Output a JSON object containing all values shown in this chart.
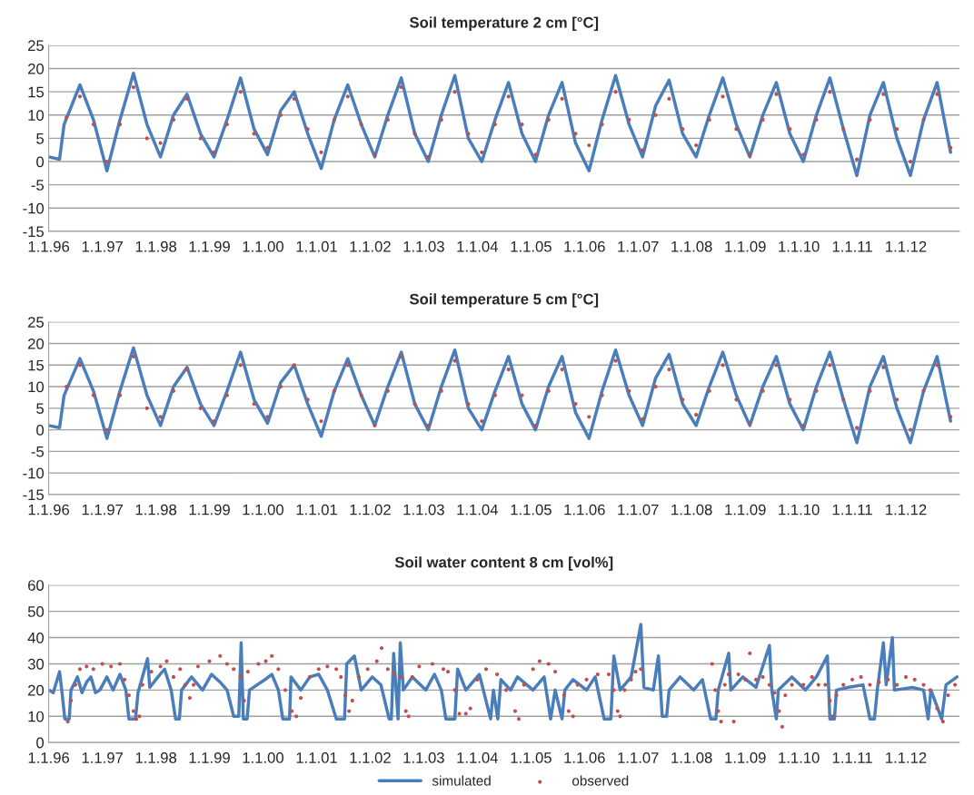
{
  "chart_data": [
    {
      "type": "line",
      "title": "Soil temperature 2 cm [°C]",
      "ylim": [
        -15,
        25
      ],
      "yticks": [
        -15,
        -10,
        -5,
        0,
        5,
        10,
        15,
        20,
        25
      ],
      "xlim": [
        "1996-01-01",
        "2012-12-31"
      ],
      "xticks": [
        {
          "value": "1996-01-01",
          "label": "1.1.96"
        },
        {
          "value": "1997-01-01",
          "label": "1.1.97"
        },
        {
          "value": "1998-01-01",
          "label": "1.1.98"
        },
        {
          "value": "1999-01-01",
          "label": "1.1.99"
        },
        {
          "value": "2000-01-01",
          "label": "1.1.00"
        },
        {
          "value": "2001-01-01",
          "label": "1.1.01"
        },
        {
          "value": "2002-01-01",
          "label": "1.1.02"
        },
        {
          "value": "2003-01-01",
          "label": "1.1.03"
        },
        {
          "value": "2004-01-01",
          "label": "1.1.04"
        },
        {
          "value": "2005-01-01",
          "label": "1.1.05"
        },
        {
          "value": "2006-01-01",
          "label": "1.1.06"
        },
        {
          "value": "2007-01-01",
          "label": "1.1.07"
        },
        {
          "value": "2008-01-01",
          "label": "1.1.08"
        },
        {
          "value": "2009-01-01",
          "label": "1.1.09"
        },
        {
          "value": "2010-01-01",
          "label": "1.1.10"
        },
        {
          "value": "2011-01-01",
          "label": "1.1.11"
        },
        {
          "value": "2012-01-01",
          "label": "1.1.12"
        }
      ],
      "grid": "y",
      "series": [
        {
          "type": "line",
          "color": "#4a7ebb",
          "x": [
            "1996-01",
            "1996-03-15",
            "1996-04-15",
            "1996-08",
            "1996-11",
            "1997-02",
            "1997-05",
            "1997-08",
            "1997-11",
            "1998-02",
            "1998-05",
            "1998-08",
            "1998-11",
            "1999-02",
            "1999-05",
            "1999-08",
            "1999-11",
            "2000-02",
            "2000-05",
            "2000-08",
            "2000-11",
            "2001-02",
            "2001-05",
            "2001-08",
            "2001-11",
            "2002-02",
            "2002-05",
            "2002-08",
            "2002-11",
            "2003-02",
            "2003-05",
            "2003-08",
            "2003-11",
            "2004-02",
            "2004-05",
            "2004-08",
            "2004-11",
            "2005-02",
            "2005-05",
            "2005-08",
            "2005-11",
            "2006-02",
            "2006-05",
            "2006-08",
            "2006-11",
            "2007-02",
            "2007-05",
            "2007-08",
            "2007-11",
            "2008-02",
            "2008-05",
            "2008-08",
            "2008-11",
            "2009-02",
            "2009-05",
            "2009-08",
            "2009-11",
            "2010-02",
            "2010-05",
            "2010-08",
            "2010-11",
            "2011-02",
            "2011-05",
            "2011-08",
            "2011-11",
            "2012-02",
            "2012-05",
            "2012-08",
            "2012-11"
          ],
          "values": [
            1,
            0.5,
            8,
            16.5,
            9,
            -2,
            9,
            19,
            8,
            1,
            10,
            14.5,
            6,
            1,
            9,
            18,
            7,
            1.5,
            11,
            15,
            6,
            -1.5,
            9,
            16.5,
            8,
            1,
            10,
            18,
            6,
            0,
            10,
            18.5,
            5,
            0,
            9,
            17,
            6,
            0,
            10,
            17,
            4,
            -2,
            9,
            18.5,
            8,
            1,
            12,
            17.5,
            6,
            1,
            10,
            18,
            8,
            1,
            10,
            17,
            6,
            0,
            10,
            18,
            7,
            -3,
            10,
            17,
            5,
            -3,
            9,
            17,
            2
          ]
        },
        {
          "type": "scatter",
          "color": "#c0504d",
          "x": [
            "1996-05",
            "1996-08",
            "1996-11",
            "1997-02",
            "1997-05",
            "1997-08",
            "1997-11",
            "1998-02",
            "1998-05",
            "1998-08",
            "1998-11",
            "1999-02",
            "1999-05",
            "1999-08",
            "1999-11",
            "2000-02",
            "2000-05",
            "2000-08",
            "2000-11",
            "2001-02",
            "2001-05",
            "2001-08",
            "2001-11",
            "2002-02",
            "2002-05",
            "2002-08",
            "2002-11",
            "2003-02",
            "2003-05",
            "2003-08",
            "2003-11",
            "2004-02",
            "2004-05",
            "2004-08",
            "2004-11",
            "2005-02",
            "2005-05",
            "2005-08",
            "2005-11",
            "2006-02",
            "2006-05",
            "2006-08",
            "2006-11",
            "2007-02",
            "2007-05",
            "2007-08",
            "2007-11",
            "2008-02",
            "2008-05",
            "2008-08",
            "2008-11",
            "2009-02",
            "2009-05",
            "2009-08",
            "2009-11",
            "2010-02",
            "2010-05",
            "2010-08",
            "2010-11",
            "2011-02",
            "2011-05",
            "2011-08",
            "2011-11",
            "2012-02",
            "2012-05",
            "2012-08",
            "2012-11"
          ],
          "values": [
            9.5,
            14,
            8,
            0,
            8,
            16,
            5,
            4,
            9,
            13.5,
            5,
            2,
            8,
            15,
            6,
            3,
            10,
            13.5,
            7,
            2,
            9,
            14,
            8,
            1.5,
            9,
            16,
            6,
            1,
            9,
            15,
            6,
            2,
            8,
            14,
            8,
            1.5,
            9,
            13.5,
            6,
            3.5,
            8,
            15,
            9,
            2.5,
            10,
            13.5,
            7,
            3.5,
            9,
            14,
            7,
            1.5,
            9,
            14.5,
            7,
            1.5,
            9,
            15,
            7,
            0.5,
            9,
            14.5,
            7,
            0,
            9,
            14.5,
            3
          ]
        }
      ]
    },
    {
      "type": "line",
      "title": "Soil temperature 5 cm [°C]",
      "ylim": [
        -15,
        25
      ],
      "yticks": [
        -15,
        -10,
        -5,
        0,
        5,
        10,
        15,
        20,
        25
      ],
      "xlim": [
        "1996-01-01",
        "2012-12-31"
      ],
      "xticks": [
        {
          "value": "1996-01-01",
          "label": "1.1.96"
        },
        {
          "value": "1997-01-01",
          "label": "1.1.97"
        },
        {
          "value": "1998-01-01",
          "label": "1.1.98"
        },
        {
          "value": "1999-01-01",
          "label": "1.1.99"
        },
        {
          "value": "2000-01-01",
          "label": "1.1.00"
        },
        {
          "value": "2001-01-01",
          "label": "1.1.01"
        },
        {
          "value": "2002-01-01",
          "label": "1.1.02"
        },
        {
          "value": "2003-01-01",
          "label": "1.1.03"
        },
        {
          "value": "2004-01-01",
          "label": "1.1.04"
        },
        {
          "value": "2005-01-01",
          "label": "1.1.05"
        },
        {
          "value": "2006-01-01",
          "label": "1.1.06"
        },
        {
          "value": "2007-01-01",
          "label": "1.1.07"
        },
        {
          "value": "2008-01-01",
          "label": "1.1.08"
        },
        {
          "value": "2009-01-01",
          "label": "1.1.09"
        },
        {
          "value": "2010-01-01",
          "label": "1.1.10"
        },
        {
          "value": "2011-01-01",
          "label": "1.1.11"
        },
        {
          "value": "2012-01-01",
          "label": "1.1.12"
        }
      ],
      "grid": "y",
      "series": [
        {
          "type": "line",
          "color": "#4a7ebb",
          "x": [
            "1996-01",
            "1996-03-15",
            "1996-04-15",
            "1996-08",
            "1996-11",
            "1997-02",
            "1997-05",
            "1997-08",
            "1997-11",
            "1998-02",
            "1998-05",
            "1998-08",
            "1998-11",
            "1999-02",
            "1999-05",
            "1999-08",
            "1999-11",
            "2000-02",
            "2000-05",
            "2000-08",
            "2000-11",
            "2001-02",
            "2001-05",
            "2001-08",
            "2001-11",
            "2002-02",
            "2002-05",
            "2002-08",
            "2002-11",
            "2003-02",
            "2003-05",
            "2003-08",
            "2003-11",
            "2004-02",
            "2004-05",
            "2004-08",
            "2004-11",
            "2005-02",
            "2005-05",
            "2005-08",
            "2005-11",
            "2006-02",
            "2006-05",
            "2006-08",
            "2006-11",
            "2007-02",
            "2007-05",
            "2007-08",
            "2007-11",
            "2008-02",
            "2008-05",
            "2008-08",
            "2008-11",
            "2009-02",
            "2009-05",
            "2009-08",
            "2009-11",
            "2010-02",
            "2010-05",
            "2010-08",
            "2010-11",
            "2011-02",
            "2011-05",
            "2011-08",
            "2011-11",
            "2012-02",
            "2012-05",
            "2012-08",
            "2012-11"
          ],
          "values": [
            1,
            0.5,
            8,
            16.5,
            9,
            -2,
            9,
            19,
            8,
            1,
            10,
            14.5,
            6,
            1,
            9,
            18,
            7,
            1.5,
            11,
            15,
            6,
            -1.5,
            9,
            16.5,
            8,
            1,
            10,
            18,
            6,
            0,
            10,
            18.5,
            5,
            0,
            9,
            17,
            6,
            0,
            10,
            17,
            4,
            -2,
            9,
            18.5,
            8,
            1,
            12,
            17.5,
            6,
            1,
            10,
            18,
            8,
            1,
            10,
            17,
            6,
            0,
            10,
            18,
            7,
            -3,
            10,
            17,
            5,
            -3,
            9,
            17,
            2
          ]
        },
        {
          "type": "scatter",
          "color": "#c0504d",
          "x": [
            "1996-05",
            "1996-08",
            "1996-11",
            "1997-02",
            "1997-05",
            "1997-08",
            "1997-11",
            "1998-02",
            "1998-05",
            "1998-08",
            "1998-11",
            "1999-02",
            "1999-05",
            "1999-08",
            "1999-11",
            "2000-02",
            "2000-05",
            "2000-08",
            "2000-11",
            "2001-02",
            "2001-05",
            "2001-08",
            "2001-11",
            "2002-02",
            "2002-05",
            "2002-08",
            "2002-11",
            "2003-02",
            "2003-05",
            "2003-08",
            "2003-11",
            "2004-02",
            "2004-05",
            "2004-08",
            "2004-11",
            "2005-02",
            "2005-05",
            "2005-08",
            "2005-11",
            "2006-02",
            "2006-05",
            "2006-08",
            "2006-11",
            "2007-02",
            "2007-05",
            "2007-08",
            "2007-11",
            "2008-02",
            "2008-05",
            "2008-08",
            "2008-11",
            "2009-02",
            "2009-05",
            "2009-08",
            "2009-11",
            "2010-02",
            "2010-05",
            "2010-08",
            "2010-11",
            "2011-02",
            "2011-05",
            "2011-08",
            "2011-11",
            "2012-02",
            "2012-05",
            "2012-08",
            "2012-11"
          ],
          "values": [
            10,
            15,
            8,
            0,
            8,
            17,
            5,
            3,
            9,
            14,
            5,
            2,
            8,
            15,
            6,
            3,
            10,
            15,
            7,
            2,
            9,
            15,
            8,
            1,
            9,
            17,
            6,
            1,
            9,
            16,
            6,
            2,
            8,
            14,
            8,
            1,
            9,
            14,
            6,
            3,
            8,
            16,
            9,
            2.5,
            10,
            14,
            7,
            3.5,
            9,
            15,
            7,
            1.5,
            9,
            15,
            7,
            1,
            9,
            15,
            7,
            0.5,
            9,
            14.5,
            7,
            0,
            9,
            15,
            3
          ]
        }
      ]
    },
    {
      "type": "line",
      "title": "Soil water content 8 cm [vol%]",
      "ylim": [
        0,
        60
      ],
      "yticks": [
        0,
        10,
        20,
        30,
        40,
        50,
        60
      ],
      "xlim": [
        "1996-01-01",
        "2012-12-31"
      ],
      "xticks": [
        {
          "value": "1996-01-01",
          "label": "1.1.96"
        },
        {
          "value": "1997-01-01",
          "label": "1.1.97"
        },
        {
          "value": "1998-01-01",
          "label": "1.1.98"
        },
        {
          "value": "1999-01-01",
          "label": "1.1.99"
        },
        {
          "value": "2000-01-01",
          "label": "1.1.00"
        },
        {
          "value": "2001-01-01",
          "label": "1.1.01"
        },
        {
          "value": "2002-01-01",
          "label": "1.1.02"
        },
        {
          "value": "2003-01-01",
          "label": "1.1.03"
        },
        {
          "value": "2004-01-01",
          "label": "1.1.04"
        },
        {
          "value": "2005-01-01",
          "label": "1.1.05"
        },
        {
          "value": "2006-01-01",
          "label": "1.1.06"
        },
        {
          "value": "2007-01-01",
          "label": "1.1.07"
        },
        {
          "value": "2008-01-01",
          "label": "1.1.08"
        },
        {
          "value": "2009-01-01",
          "label": "1.1.09"
        },
        {
          "value": "2010-01-01",
          "label": "1.1.10"
        },
        {
          "value": "2011-01-01",
          "label": "1.1.11"
        },
        {
          "value": "2012-01-01",
          "label": "1.1.12"
        }
      ],
      "grid": "y",
      "legend": "bottom",
      "series": [
        {
          "type": "line",
          "name": "simulated",
          "color": "#4a7ebb",
          "x": [
            "1996-01-01",
            "1996-02-01",
            "1996-03-15",
            "1996-04-01",
            "1996-04-20",
            "1996-05-20",
            "1996-06-01",
            "1996-07-15",
            "1996-08-15",
            "1996-09-15",
            "1996-10-15",
            "1996-11-15",
            "1996-12-15",
            "1997-02-01",
            "1997-03-15",
            "1997-05-01",
            "1997-06-10",
            "1997-07-01",
            "1997-08-15",
            "1997-09-01",
            "1997-11-05",
            "1997-11-20",
            "1998-01-15",
            "1998-03-01",
            "1998-04-15",
            "1998-05-15",
            "1998-06-10",
            "1998-06-25",
            "1998-09-01",
            "1998-11-15",
            "1999-01-15",
            "1999-03-15",
            "1999-05-01",
            "1999-06-15",
            "1999-07-20",
            "1999-08-05",
            "1999-08-20",
            "1999-09-15",
            "1999-10-01",
            "2000-01-15",
            "2000-03-01",
            "2000-04-15",
            "2000-05-15",
            "2000-06-30",
            "2000-07-10",
            "2000-09-15",
            "2000-11-15",
            "2001-01-15",
            "2001-03-15",
            "2001-05-15",
            "2001-07-10",
            "2001-07-25",
            "2001-09-15",
            "2001-11-01",
            "2002-01-15",
            "2002-03-15",
            "2002-05-10",
            "2002-05-25",
            "2002-06-10",
            "2002-07-10",
            "2002-07-25",
            "2002-08-15",
            "2002-10-15",
            "2003-01-15",
            "2003-03-15",
            "2003-05-01",
            "2003-06-01",
            "2003-08-01",
            "2003-08-20",
            "2003-10-15",
            "2004-01-15",
            "2004-04-01",
            "2004-04-20",
            "2004-05-20",
            "2004-06-10",
            "2004-08-15",
            "2004-10-01",
            "2005-01-15",
            "2005-04-01",
            "2005-05-15",
            "2005-06-15",
            "2005-08-01",
            "2005-08-20",
            "2005-10-15",
            "2006-01-15",
            "2006-03-15",
            "2006-05-15",
            "2006-06-30",
            "2006-07-20",
            "2006-09-01",
            "2006-11-15",
            "2007-01-20",
            "2007-02-10",
            "2007-04-15",
            "2007-05-20",
            "2007-06-15",
            "2007-07-15",
            "2007-08-01",
            "2007-10-15",
            "2008-01-15",
            "2008-03-15",
            "2008-05-10",
            "2008-06-15",
            "2008-07-01",
            "2008-09-10",
            "2008-09-25",
            "2008-12-15",
            "2009-03-15",
            "2009-06-15",
            "2009-07-01",
            "2009-08-01",
            "2009-08-15",
            "2009-11-15",
            "2010-02-15",
            "2010-05-01",
            "2010-07-15",
            "2010-08-01",
            "2010-09-01",
            "2010-09-15",
            "2010-12-01",
            "2011-03-15",
            "2011-05-01",
            "2011-06-01",
            "2011-06-20",
            "2011-08-01",
            "2011-08-20",
            "2011-10-01",
            "2011-10-15",
            "2012-02-15",
            "2012-05-01",
            "2012-06-01",
            "2012-06-20",
            "2012-09-01",
            "2012-10-01",
            "2012-12-15"
          ],
          "values": [
            20,
            19,
            27,
            19,
            9,
            9,
            20,
            25,
            19,
            23,
            25,
            19,
            20,
            25,
            20,
            26,
            20,
            9,
            9,
            19,
            32,
            21,
            25,
            28,
            20,
            9,
            9,
            20,
            25,
            20,
            26,
            23,
            20,
            10,
            10,
            38,
            9,
            9,
            20,
            24,
            26,
            20,
            9,
            9,
            25,
            20,
            25,
            26,
            20,
            9,
            9,
            30,
            33,
            20,
            25,
            22,
            9,
            9,
            34,
            9,
            38,
            20,
            25,
            20,
            26,
            20,
            9,
            9,
            28,
            20,
            26,
            9,
            20,
            9,
            24,
            20,
            25,
            20,
            25,
            9,
            20,
            9,
            20,
            24,
            20,
            25,
            9,
            9,
            33,
            20,
            25,
            45,
            21,
            20,
            33,
            10,
            10,
            20,
            25,
            20,
            24,
            9,
            9,
            20,
            34,
            20,
            25,
            21,
            37,
            20,
            9,
            20,
            25,
            20,
            25,
            33,
            9,
            9,
            20,
            21,
            22,
            9,
            9,
            20,
            38,
            22,
            40,
            20,
            21,
            20,
            9,
            20,
            9,
            22,
            25
          ]
        },
        {
          "type": "scatter",
          "name": "observed",
          "color": "#c0504d",
          "x": [
            "1996-05-10",
            "1996-06-01",
            "1996-07-01",
            "1996-08-01",
            "1996-09-15",
            "1996-11-01",
            "1997-01-01",
            "1997-03-01",
            "1997-05-01",
            "1997-06-01",
            "1997-07-01",
            "1997-08-01",
            "1997-08-20",
            "1997-09-10",
            "1997-10-01",
            "1997-12-01",
            "1998-02-01",
            "1998-03-15",
            "1998-05-01",
            "1998-06-15",
            "1998-07-20",
            "1998-08-20",
            "1998-09-15",
            "1998-10-15",
            "1999-01-01",
            "1999-03-15",
            "1999-05-01",
            "1999-06-15",
            "1999-08-01",
            "1999-08-25",
            "1999-09-20",
            "1999-12-01",
            "2000-01-20",
            "2000-03-01",
            "2000-04-15",
            "2000-06-01",
            "2000-07-15",
            "2000-08-15",
            "2000-09-15",
            "2000-11-15",
            "2001-01-15",
            "2001-03-15",
            "2001-05-15",
            "2001-06-15",
            "2001-07-15",
            "2001-08-10",
            "2001-09-01",
            "2001-10-15",
            "2001-12-15",
            "2002-02-15",
            "2002-03-20",
            "2002-05-01",
            "2002-06-15",
            "2002-08-01",
            "2002-09-01",
            "2002-09-20",
            "2002-10-15",
            "2002-12-01",
            "2003-03-01",
            "2003-05-15",
            "2003-06-15",
            "2003-08-01",
            "2003-09-01",
            "2003-10-15",
            "2003-11-15",
            "2004-01-01",
            "2004-03-01",
            "2004-05-15",
            "2004-07-15",
            "2004-09-15",
            "2004-10-10",
            "2004-11-15",
            "2005-01-15",
            "2005-03-01",
            "2005-05-01",
            "2005-06-15",
            "2005-08-15",
            "2005-09-15",
            "2005-10-15",
            "2005-11-15",
            "2006-01-15",
            "2006-04-01",
            "2006-06-15",
            "2006-07-20",
            "2006-08-15",
            "2006-09-01",
            "2006-10-01",
            "2006-11-15",
            "2006-12-15",
            "2007-01-20",
            "2008-05-20",
            "2008-06-10",
            "2008-07-01",
            "2008-07-20",
            "2008-08-15",
            "2008-09-10",
            "2008-10-15",
            "2008-11-15",
            "2009-01-01",
            "2009-02-01",
            "2009-03-15",
            "2009-05-01",
            "2009-06-15",
            "2009-07-20",
            "2009-08-20",
            "2009-09-10",
            "2009-10-01",
            "2009-11-15",
            "2010-02-01",
            "2010-04-01",
            "2010-05-15",
            "2010-07-01",
            "2010-08-01",
            "2010-08-20",
            "2010-09-15",
            "2010-11-01",
            "2011-01-01",
            "2011-03-01",
            "2011-05-01",
            "2011-07-01",
            "2011-09-01",
            "2011-11-01",
            "2012-01-01",
            "2012-03-01",
            "2012-05-01",
            "2012-06-15",
            "2012-08-01",
            "2012-09-10",
            "2012-10-15",
            "2012-12-01"
          ],
          "values": [
            8,
            16,
            22,
            28,
            29,
            28,
            30,
            29,
            30,
            24,
            18,
            12,
            9,
            10,
            22,
            27,
            29,
            31,
            25,
            28,
            22,
            17,
            22,
            29,
            31,
            33,
            30,
            28,
            25,
            16,
            27,
            30,
            31,
            33,
            28,
            20,
            12,
            10,
            17,
            25,
            28,
            29,
            28,
            25,
            18,
            12,
            16,
            25,
            28,
            31,
            36,
            28,
            26,
            25,
            12,
            10,
            25,
            29,
            30,
            28,
            27,
            20,
            11,
            11,
            13,
            24,
            28,
            26,
            20,
            12,
            9,
            22,
            28,
            31,
            30,
            27,
            18,
            12,
            10,
            22,
            24,
            26,
            26,
            20,
            12,
            10,
            20,
            24,
            27,
            28,
            30,
            20,
            12,
            8,
            22,
            26,
            8,
            26,
            24,
            34,
            24,
            25,
            22,
            19,
            12,
            6,
            18,
            22,
            22,
            25,
            22,
            22,
            16,
            10,
            18,
            22,
            24,
            25,
            22,
            23,
            24,
            22,
            25,
            24,
            22,
            20,
            13,
            8,
            18,
            22
          ]
        }
      ]
    }
  ]
}
